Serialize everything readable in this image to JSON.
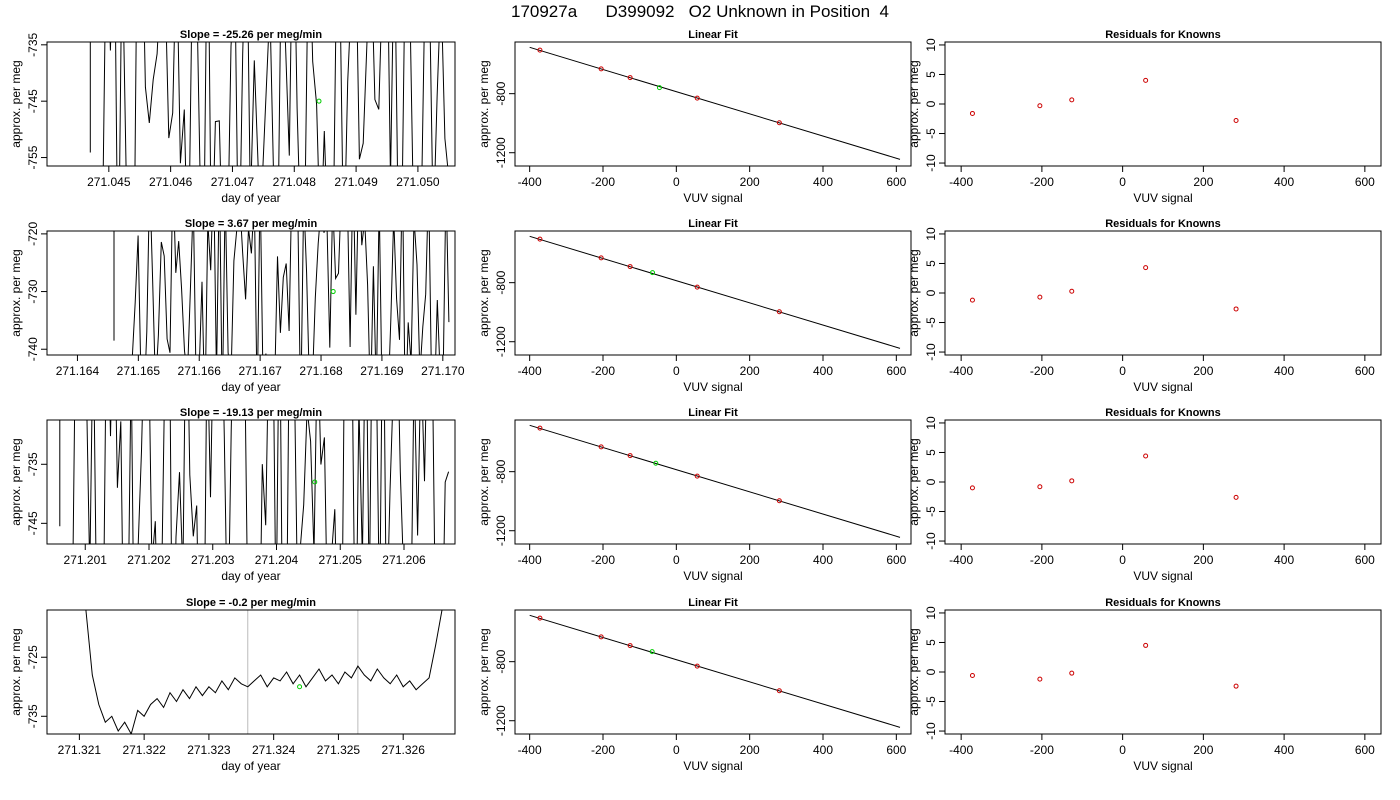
{
  "title": "170927a      D399092   O2 Unknown in Position  4",
  "colors": {
    "known": "#cc0000",
    "unknown": "#00cc00",
    "line": "#000000",
    "grid": "#bbbbbb"
  },
  "chart_data": [
    {
      "type": "line",
      "title": "Slope =  -25.26  per meg/min",
      "xlabel": "day of year",
      "ylabel": "approx. per meg",
      "xlim": [
        271.044,
        271.0506
      ],
      "ylim": [
        -756.5,
        -734.5
      ],
      "xticks": [
        271.045,
        271.046,
        271.047,
        271.048,
        271.049,
        271.05
      ],
      "xtick_labels": [
        "271.045",
        "271.046",
        "271.047",
        "271.048",
        "271.049",
        "271.050"
      ],
      "yticks": [
        -735,
        -745,
        -755
      ],
      "ytick_labels": [
        "-735",
        "-745",
        "-755"
      ],
      "unknown_point": [
        271.0484,
        -745
      ],
      "vlines": [],
      "series": [
        {
          "x": [
            271.0447,
            271.0447,
            271.0447
          ],
          "y": [
            -734.5,
            -754.1,
            -734.5
          ]
        }
      ],
      "trace": {
        "x0": 271.0449,
        "x1": 271.0505,
        "n": 90,
        "center": -745,
        "amp": 40,
        "seed": 7
      }
    },
    {
      "type": "scatter",
      "title": "Linear Fit",
      "xlabel": "VUV signal",
      "ylabel": "approx. per meg",
      "xlim": [
        -440,
        640
      ],
      "ylim": [
        -1290,
        -450
      ],
      "xticks": [
        -400,
        -200,
        0,
        200,
        400,
        600
      ],
      "xtick_labels": [
        "-400",
        "-200",
        "0",
        "200",
        "400",
        "600"
      ],
      "yticks": [
        -800,
        -1200
      ],
      "ytick_labels": [
        "-800",
        "-1200"
      ],
      "fit_line": [
        [
          -400,
          -486
        ],
        [
          610,
          -1245
        ]
      ],
      "known_x": [
        -372,
        -205,
        -126,
        57,
        281
      ],
      "known_y": [
        -505,
        -632,
        -691,
        -830,
        -997
      ],
      "unknown_point": [
        -46,
        -759
      ]
    },
    {
      "type": "scatter",
      "title": "Residuals for Knowns",
      "xlabel": "VUV signal",
      "ylabel": "approx. per meg",
      "xlim": [
        -440,
        640
      ],
      "ylim": [
        -10.5,
        10.5
      ],
      "xticks": [
        -400,
        -200,
        0,
        200,
        400,
        600
      ],
      "xtick_labels": [
        "-400",
        "-200",
        "0",
        "200",
        "400",
        "600"
      ],
      "yticks": [
        -10,
        -5,
        0,
        5,
        10
      ],
      "ytick_labels": [
        "-10",
        "-5",
        "0",
        "5",
        "10"
      ],
      "known_x": [
        -372,
        -205,
        -126,
        57,
        281
      ],
      "known_y": [
        -1.6,
        -0.3,
        0.7,
        4.0,
        -2.8
      ]
    },
    {
      "type": "line",
      "title": "Slope =  3.67  per meg/min",
      "xlabel": "day of year",
      "ylabel": "approx. per meg",
      "xlim": [
        271.1635,
        271.1702
      ],
      "ylim": [
        -741,
        -719.5
      ],
      "xticks": [
        271.164,
        271.165,
        271.166,
        271.167,
        271.168,
        271.169,
        271.17
      ],
      "xtick_labels": [
        "271.164",
        "271.165",
        "271.166",
        "271.167",
        "271.168",
        "271.169",
        "271.170"
      ],
      "yticks": [
        -720,
        -730,
        -740
      ],
      "ytick_labels": [
        "-720",
        "-730",
        "-740"
      ],
      "unknown_point": [
        271.1682,
        -730
      ],
      "vlines": [],
      "series": [
        {
          "x": [
            271.1646,
            271.1646,
            271.1646
          ],
          "y": [
            -719.5,
            -738.5,
            -719.5
          ]
        }
      ],
      "trace": {
        "x0": 271.1649,
        "x1": 271.1701,
        "n": 110,
        "center": -730,
        "amp": 22,
        "seed": 13
      }
    },
    {
      "type": "scatter",
      "title": "Linear Fit",
      "xlabel": "VUV signal",
      "ylabel": "approx. per meg",
      "xlim": [
        -440,
        640
      ],
      "ylim": [
        -1290,
        -450
      ],
      "xticks": [
        -400,
        -200,
        0,
        200,
        400,
        600
      ],
      "xtick_labels": [
        "-400",
        "-200",
        "0",
        "200",
        "400",
        "600"
      ],
      "yticks": [
        -800,
        -1200
      ],
      "ytick_labels": [
        "-800",
        "-1200"
      ],
      "fit_line": [
        [
          -400,
          -486
        ],
        [
          610,
          -1245
        ]
      ],
      "known_x": [
        -372,
        -205,
        -126,
        57,
        281
      ],
      "known_y": [
        -505,
        -632,
        -691,
        -830,
        -997
      ],
      "unknown_point": [
        -65,
        -732
      ]
    },
    {
      "type": "scatter",
      "title": "Residuals for Knowns",
      "xlabel": "VUV signal",
      "ylabel": "approx. per meg",
      "xlim": [
        -440,
        640
      ],
      "ylim": [
        -10.5,
        10.5
      ],
      "xticks": [
        -400,
        -200,
        0,
        200,
        400,
        600
      ],
      "xtick_labels": [
        "-400",
        "-200",
        "0",
        "200",
        "400",
        "600"
      ],
      "yticks": [
        -10,
        -5,
        0,
        5,
        10
      ],
      "ytick_labels": [
        "-10",
        "-5",
        "0",
        "5",
        "10"
      ],
      "known_x": [
        -372,
        -205,
        -126,
        57,
        281
      ],
      "known_y": [
        -1.2,
        -0.7,
        0.3,
        4.3,
        -2.7
      ]
    },
    {
      "type": "line",
      "title": "Slope =  -19.13  per meg/min",
      "xlabel": "day of year",
      "ylabel": "approx. per meg",
      "xlim": [
        271.2004,
        271.2068
      ],
      "ylim": [
        -748.5,
        -727.5
      ],
      "xticks": [
        271.201,
        271.202,
        271.203,
        271.204,
        271.205,
        271.206
      ],
      "xtick_labels": [
        "271.201",
        "271.202",
        "271.203",
        "271.204",
        "271.205",
        "271.206"
      ],
      "yticks": [
        -735,
        -745
      ],
      "ytick_labels": [
        "-735",
        "-745"
      ],
      "unknown_point": [
        271.2046,
        -738
      ],
      "vlines": [],
      "series": [
        {
          "x": [
            271.2006,
            271.2006,
            271.2006
          ],
          "y": [
            -727.5,
            -745.5,
            -727.5
          ]
        }
      ],
      "trace": {
        "x0": 271.2008,
        "x1": 271.2067,
        "n": 110,
        "center": -738,
        "amp": 40,
        "seed": 29
      }
    },
    {
      "type": "scatter",
      "title": "Linear Fit",
      "xlabel": "VUV signal",
      "ylabel": "approx. per meg",
      "xlim": [
        -440,
        640
      ],
      "ylim": [
        -1290,
        -450
      ],
      "xticks": [
        -400,
        -200,
        0,
        200,
        400,
        600
      ],
      "xtick_labels": [
        "-400",
        "-200",
        "0",
        "200",
        "400",
        "600"
      ],
      "yticks": [
        -800,
        -1200
      ],
      "ytick_labels": [
        "-800",
        "-1200"
      ],
      "fit_line": [
        [
          -400,
          -486
        ],
        [
          610,
          -1245
        ]
      ],
      "known_x": [
        -372,
        -205,
        -126,
        57,
        281
      ],
      "known_y": [
        -505,
        -632,
        -691,
        -830,
        -997
      ],
      "unknown_point": [
        -56,
        -743
      ]
    },
    {
      "type": "scatter",
      "title": "Residuals for Knowns",
      "xlabel": "VUV signal",
      "ylabel": "approx. per meg",
      "xlim": [
        -440,
        640
      ],
      "ylim": [
        -10.5,
        10.5
      ],
      "xticks": [
        -400,
        -200,
        0,
        200,
        400,
        600
      ],
      "xtick_labels": [
        "-400",
        "-200",
        "0",
        "200",
        "400",
        "600"
      ],
      "yticks": [
        -10,
        -5,
        0,
        5,
        10
      ],
      "ytick_labels": [
        "-10",
        "-5",
        "0",
        "5",
        "10"
      ],
      "known_x": [
        -372,
        -205,
        -126,
        57,
        281
      ],
      "known_y": [
        -1.0,
        -0.8,
        0.2,
        4.4,
        -2.6
      ]
    },
    {
      "type": "line",
      "title": "Slope =  -0.2  per meg/min",
      "xlabel": "day of year",
      "ylabel": "approx. per meg",
      "xlim": [
        271.3205,
        271.3268
      ],
      "ylim": [
        -738,
        -717
      ],
      "xticks": [
        271.321,
        271.322,
        271.323,
        271.324,
        271.325,
        271.326
      ],
      "xtick_labels": [
        "271.321",
        "271.322",
        "271.323",
        "271.324",
        "271.325",
        "271.326"
      ],
      "yticks": [
        -725,
        -735
      ],
      "ytick_labels": [
        "-725",
        "-735"
      ],
      "unknown_point": [
        271.3244,
        -730
      ],
      "vlines": [
        271.3236,
        271.3253
      ],
      "series": [
        {
          "x": [
            271.3211,
            271.3212,
            271.3213,
            271.3214,
            271.3215,
            271.3216,
            271.3217,
            271.3218,
            271.3219,
            271.322,
            271.3221,
            271.3222,
            271.3223,
            271.3224,
            271.3225,
            271.3226,
            271.3227,
            271.3228,
            271.3229,
            271.323,
            271.3231,
            271.3232,
            271.3233,
            271.3234,
            271.3235,
            271.3236,
            271.3237,
            271.3238,
            271.3239,
            271.324,
            271.3241,
            271.3242,
            271.3243,
            271.3244,
            271.3245,
            271.3246,
            271.3247,
            271.3248,
            271.3249,
            271.325,
            271.3251,
            271.3252,
            271.3253,
            271.3254,
            271.3255,
            271.3256,
            271.3257,
            271.3258,
            271.3259,
            271.326,
            271.3261,
            271.3262,
            271.3263,
            271.3264,
            271.3265,
            271.3266
          ],
          "y": [
            -717,
            -728,
            -733,
            -736,
            -735,
            -737.5,
            -736,
            -738,
            -734,
            -735,
            -733,
            -732,
            -733.5,
            -731,
            -732.5,
            -730.5,
            -732,
            -730,
            -731.5,
            -730,
            -731,
            -729,
            -730.5,
            -728.5,
            -729.5,
            -730,
            -729,
            -728,
            -730,
            -728.5,
            -729,
            -727.5,
            -729.5,
            -728,
            -730,
            -728.5,
            -727,
            -729,
            -728,
            -729.5,
            -727.5,
            -728.5,
            -726.5,
            -728,
            -729,
            -727,
            -728.5,
            -729.5,
            -728,
            -730,
            -729,
            -730.5,
            -729.5,
            -728.5,
            -723,
            -717
          ]
        }
      ]
    },
    {
      "type": "scatter",
      "title": "Linear Fit",
      "xlabel": "VUV signal",
      "ylabel": "approx. per meg",
      "xlim": [
        -440,
        640
      ],
      "ylim": [
        -1290,
        -450
      ],
      "xticks": [
        -400,
        -200,
        0,
        200,
        400,
        600
      ],
      "xtick_labels": [
        "-400",
        "-200",
        "0",
        "200",
        "400",
        "600"
      ],
      "yticks": [
        -800,
        -1200
      ],
      "ytick_labels": [
        "-800",
        "-1200"
      ],
      "fit_line": [
        [
          -400,
          -486
        ],
        [
          610,
          -1245
        ]
      ],
      "known_x": [
        -372,
        -205,
        -126,
        57,
        281
      ],
      "known_y": [
        -505,
        -632,
        -691,
        -830,
        -997
      ],
      "unknown_point": [
        -66,
        -732
      ]
    },
    {
      "type": "scatter",
      "title": "Residuals for Knowns",
      "xlabel": "VUV signal",
      "ylabel": "approx. per meg",
      "xlim": [
        -440,
        640
      ],
      "ylim": [
        -10.5,
        10.5
      ],
      "xticks": [
        -400,
        -200,
        0,
        200,
        400,
        600
      ],
      "xtick_labels": [
        "-400",
        "-200",
        "0",
        "200",
        "400",
        "600"
      ],
      "yticks": [
        -10,
        -5,
        0,
        5,
        10
      ],
      "ytick_labels": [
        "-10",
        "-5",
        "0",
        "5",
        "10"
      ],
      "known_x": [
        -372,
        -205,
        -126,
        57,
        281
      ],
      "known_y": [
        -0.6,
        -1.2,
        -0.2,
        4.5,
        -2.4
      ]
    }
  ]
}
